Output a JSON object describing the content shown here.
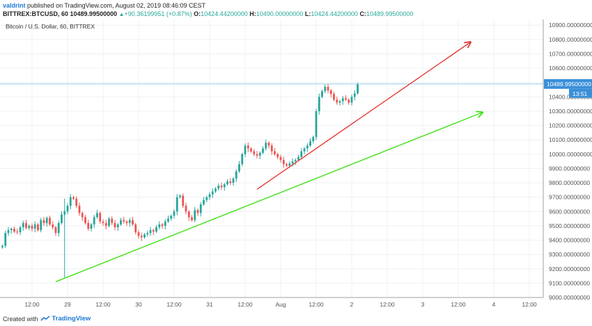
{
  "header": {
    "user": "valdrint",
    "published_text": "published on TradingView.com, August 02, 2019 08:46:09 CEST",
    "symbol": "BITTREX:BTCUSD, 60",
    "last": "10489.99500000",
    "change": "+90.36199951 (+0.87%)",
    "o_label": "O:",
    "o": "10424.44200000",
    "h_label": "H:",
    "h": "10490.00000000",
    "l_label": "L:",
    "l": "10424.44200000",
    "c_label": "C:",
    "c": "10489.99500000"
  },
  "chart_title": "Bitcoin / U.S. Dollar, 60, BITTREX",
  "footer": {
    "created_with": "Created with",
    "brand": "TradingView"
  },
  "price_tag": {
    "value": "10489.99500000",
    "countdown": "13:51"
  },
  "colors": {
    "up": "#26a69a",
    "down": "#ef5350",
    "upper_trendline": "#e53935",
    "lower_trendline": "#3fe014",
    "last_price_line": "#8fd0e8",
    "price_tag_bg": "#3a8fd8",
    "grid": "#eef0f3"
  },
  "chart_data": {
    "type": "candlestick",
    "symbol": "BITTREX:BTCUSD",
    "timeframe": "60",
    "ylim": [
      9000,
      10940
    ],
    "y_ticks": [
      9000,
      9100,
      9200,
      9300,
      9400,
      9500,
      9600,
      9700,
      9800,
      9900,
      10000,
      10100,
      10200,
      10300,
      10400,
      10500,
      10600,
      10700,
      10800,
      10900
    ],
    "y_tick_labels": [
      "9000.00000000",
      "9100.00000000",
      "9200.00000000",
      "9300.00000000",
      "9400.00000000",
      "9500.00000000",
      "9600.00000000",
      "9700.00000000",
      "9800.00000000",
      "9900.00000000",
      "10000.00000000",
      "10100.00000000",
      "10200.00000000",
      "10300.00000000",
      "10400.00000000",
      "10500.00000000",
      "10600.00000000",
      "10700.00000000",
      "10800.00000000",
      "10900.00000000"
    ],
    "x_axis_labels": [
      "12:00",
      "29",
      "12:00",
      "30",
      "12:00",
      "31",
      "12:00",
      "Aug",
      "12:00",
      "2",
      "12:00",
      "3",
      "12:00",
      "4",
      "12:00"
    ],
    "candle_hours": 1,
    "start_hour_offset": -22,
    "closes": [
      9360,
      9450,
      9470,
      9480,
      9460,
      9455,
      9490,
      9520,
      9485,
      9500,
      9480,
      9510,
      9470,
      9540,
      9520,
      9555,
      9510,
      9490,
      9450,
      9520,
      9580,
      9600,
      9640,
      9700,
      9690,
      9640,
      9590,
      9560,
      9520,
      9480,
      9510,
      9560,
      9590,
      9530,
      9520,
      9500,
      9550,
      9520,
      9490,
      9510,
      9540,
      9530,
      9520,
      9540,
      9510,
      9455,
      9430,
      9420,
      9440,
      9450,
      9470,
      9460,
      9490,
      9510,
      9500,
      9530,
      9550,
      9570,
      9600,
      9700,
      9710,
      9640,
      9600,
      9560,
      9540,
      9610,
      9590,
      9650,
      9680,
      9700,
      9720,
      9740,
      9760,
      9780,
      9770,
      9790,
      9810,
      9800,
      9830,
      9880,
      9930,
      10000,
      10060,
      10040,
      10020,
      10000,
      9990,
      10010,
      10040,
      10080,
      10060,
      10020,
      10000,
      9980,
      9960,
      9930,
      9920,
      9935,
      9950,
      9960,
      9980,
      10020,
      10040,
      10060,
      10090,
      10120,
      10300,
      10400,
      10440,
      10470,
      10445,
      10420,
      10380,
      10360,
      10370,
      10390,
      10380,
      10360,
      10400,
      10424.44,
      10489.995
    ]
  },
  "trendlines": [
    {
      "name": "upper-channel-line",
      "color": "red",
      "from": {
        "hours": 64,
        "price": 9755
      },
      "to": {
        "hours": 136,
        "price": 10780
      }
    },
    {
      "name": "lower-support-line",
      "color": "green",
      "from": {
        "hours": -4,
        "price": 9110
      },
      "to": {
        "hours": 140,
        "price": 10290
      }
    }
  ]
}
